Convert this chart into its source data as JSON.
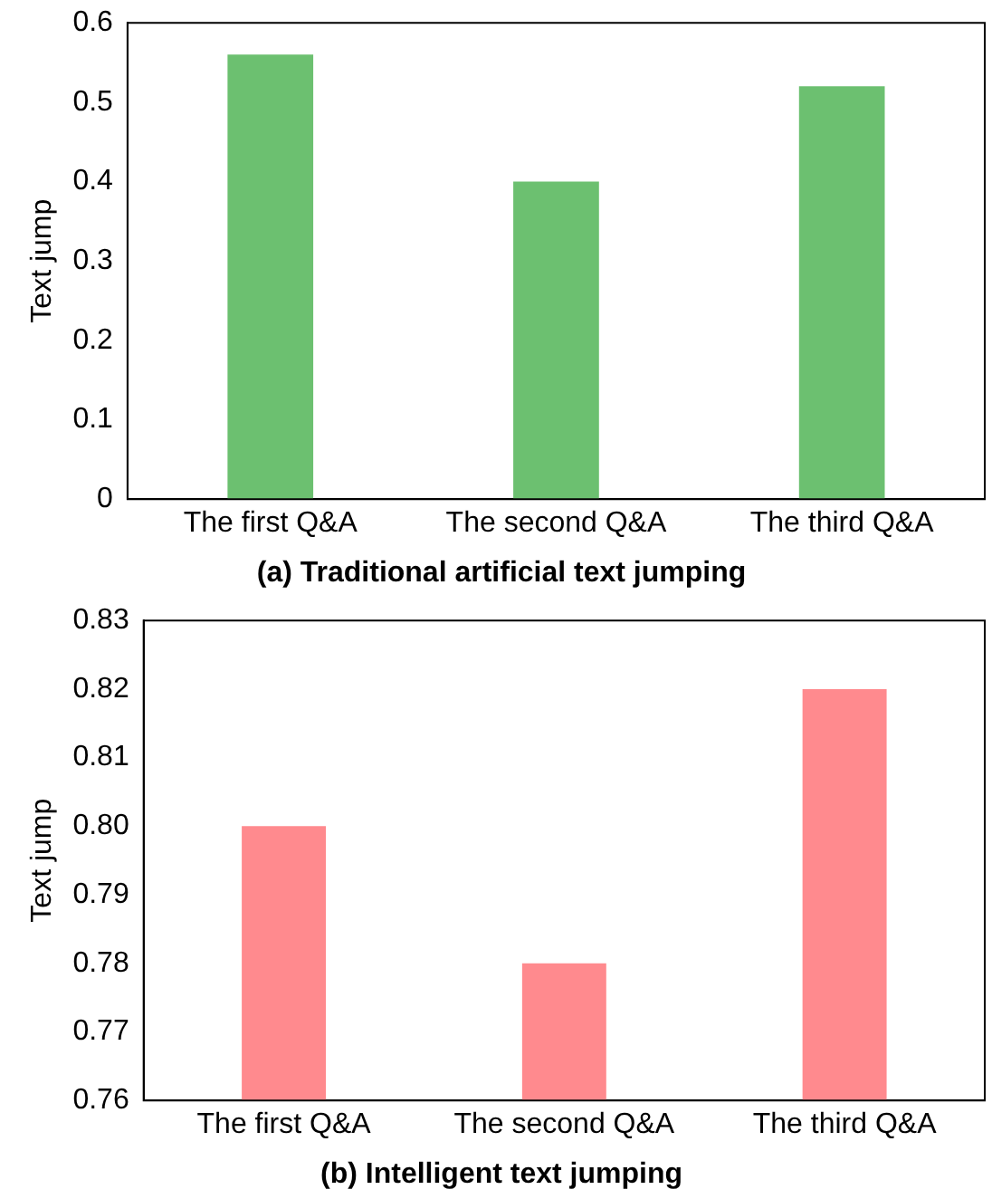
{
  "chart_data": [
    {
      "type": "bar",
      "title": "(a) Traditional artificial text jumping",
      "ylabel": "Text jump",
      "categories": [
        "The first Q&A",
        "The second Q&A",
        "The third Q&A"
      ],
      "values": [
        0.56,
        0.4,
        0.52
      ],
      "color": "#6cc070",
      "ylim": [
        0,
        0.6
      ],
      "yticks": [
        0,
        0.1,
        0.2,
        0.3,
        0.4,
        0.5,
        0.6
      ],
      "grid": false,
      "legend": false
    },
    {
      "type": "bar",
      "title": "(b) Intelligent text jumping",
      "ylabel": "Text jump",
      "categories": [
        "The first Q&A",
        "The second Q&A",
        "The third Q&A"
      ],
      "values": [
        0.8,
        0.78,
        0.82
      ],
      "color": "#ff8a8e",
      "ylim": [
        0.76,
        0.83
      ],
      "yticks": [
        0.76,
        0.77,
        0.78,
        0.79,
        {
          "value": 0.8,
          "label": "0.80"
        },
        0.81,
        0.82,
        0.83
      ],
      "grid": false,
      "legend": false
    }
  ]
}
